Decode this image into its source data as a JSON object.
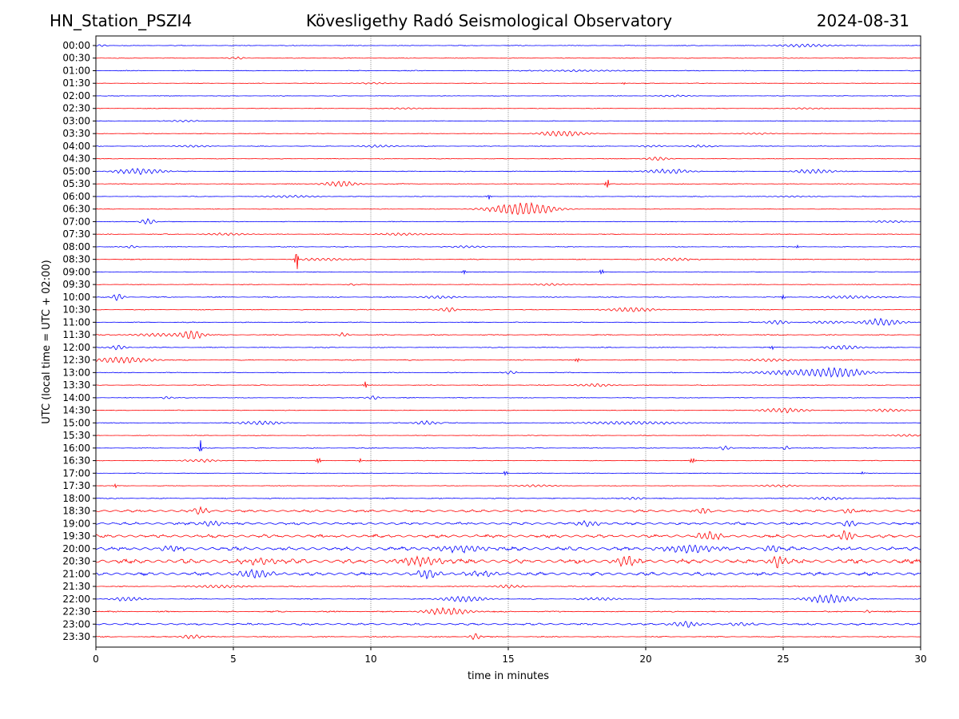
{
  "header": {
    "station": "HN_Station_PSZI4",
    "observatory": "Kövesligethy Radó Seismological Observatory",
    "date": "2024-08-31"
  },
  "chart_data": {
    "type": "line",
    "title": "Kövesligethy Radó Seismological Observatory",
    "xlabel": "time in minutes",
    "ylabel": "UTC (local time = UTC + 02:00)",
    "xlim": [
      0,
      30
    ],
    "x_ticks": [
      "0",
      "5",
      "10",
      "15",
      "20",
      "25",
      "30"
    ],
    "grid": "vertical dotted at each x tick",
    "series_colors": [
      "#0000ff",
      "#ff0000"
    ],
    "rows": [
      {
        "label": "00:00",
        "noise": 0.6,
        "events": [
          [
            0.2,
            1.5,
            0.3
          ],
          [
            25.8,
            2,
            1.5
          ]
        ]
      },
      {
        "label": "00:30",
        "noise": 0.5,
        "events": [
          [
            5.1,
            1.5,
            0.5
          ]
        ]
      },
      {
        "label": "01:00",
        "noise": 0.7,
        "events": [
          [
            17.5,
            1.0,
            3
          ]
        ]
      },
      {
        "label": "01:30",
        "noise": 0.5,
        "events": [
          [
            10,
            1,
            1
          ],
          [
            19.2,
            1.5,
            0.1
          ]
        ]
      },
      {
        "label": "02:00",
        "noise": 0.5,
        "events": [
          [
            21,
            1.2,
            1
          ]
        ]
      },
      {
        "label": "02:30",
        "noise": 0.5,
        "events": [
          [
            11.3,
            1,
            1
          ],
          [
            25.8,
            1,
            1
          ]
        ]
      },
      {
        "label": "03:00",
        "noise": 0.6,
        "events": [
          [
            3.2,
            1.2,
            1
          ]
        ]
      },
      {
        "label": "03:30",
        "noise": 0.5,
        "events": [
          [
            17,
            4,
            1.2
          ],
          [
            24,
            1,
            1
          ]
        ]
      },
      {
        "label": "04:00",
        "noise": 0.6,
        "events": [
          [
            3.5,
            1.5,
            1
          ],
          [
            10.3,
            1.5,
            1
          ],
          [
            20.2,
            1.5,
            0.6
          ],
          [
            22,
            1.5,
            0.8
          ]
        ]
      },
      {
        "label": "04:30",
        "noise": 0.5,
        "events": [
          [
            20.4,
            2.5,
            0.6
          ]
        ]
      },
      {
        "label": "05:00",
        "noise": 0.7,
        "events": [
          [
            1.6,
            4,
            1.3
          ],
          [
            20.8,
            3,
            1.2
          ],
          [
            26.1,
            3,
            1.1
          ]
        ]
      },
      {
        "label": "05:30",
        "noise": 0.6,
        "events": [
          [
            8.9,
            4,
            0.9
          ],
          [
            18.6,
            7,
            0.1
          ]
        ]
      },
      {
        "label": "06:00",
        "noise": 0.6,
        "events": [
          [
            7,
            1.5,
            1.5
          ],
          [
            14.3,
            4,
            0.1
          ],
          [
            25.3,
            1,
            1
          ]
        ]
      },
      {
        "label": "06:30",
        "noise": 0.5,
        "events": [
          [
            15.5,
            9,
            1.6
          ]
        ]
      },
      {
        "label": "07:00",
        "noise": 0.6,
        "events": [
          [
            1.9,
            4,
            0.4
          ],
          [
            28.8,
            1.5,
            1
          ]
        ]
      },
      {
        "label": "07:30",
        "noise": 0.6,
        "events": [
          [
            4.8,
            1.5,
            1.2
          ],
          [
            11.2,
            1.5,
            1.5
          ]
        ]
      },
      {
        "label": "08:00",
        "noise": 0.6,
        "events": [
          [
            1.3,
            2,
            0.3
          ],
          [
            13.5,
            1.5,
            1
          ],
          [
            25.5,
            3,
            0.1
          ]
        ]
      },
      {
        "label": "08:30",
        "noise": 0.8,
        "events": [
          [
            7.3,
            18,
            0.08
          ],
          [
            8.2,
            2,
            1.2
          ],
          [
            21,
            2,
            1
          ]
        ]
      },
      {
        "label": "09:00",
        "noise": 0.6,
        "events": [
          [
            13.4,
            4,
            0.1
          ],
          [
            18.4,
            4,
            0.1
          ]
        ]
      },
      {
        "label": "09:30",
        "noise": 0.6,
        "events": [
          [
            9.3,
            2,
            0.2
          ],
          [
            16.5,
            1.5,
            1
          ]
        ]
      },
      {
        "label": "10:00",
        "noise": 0.7,
        "events": [
          [
            0.8,
            5,
            0.3
          ],
          [
            12.5,
            2,
            1
          ],
          [
            25,
            3,
            0.1
          ],
          [
            27.5,
            2,
            1.5
          ]
        ]
      },
      {
        "label": "10:30",
        "noise": 0.7,
        "events": [
          [
            12.8,
            3,
            0.5
          ],
          [
            19.5,
            3,
            1.2
          ]
        ]
      },
      {
        "label": "11:00",
        "noise": 0.7,
        "events": [
          [
            24.8,
            3,
            0.6
          ],
          [
            26.6,
            2,
            1
          ],
          [
            28.6,
            5,
            1
          ]
        ]
      },
      {
        "label": "11:30",
        "noise": 0.8,
        "events": [
          [
            2.3,
            2,
            1.5
          ],
          [
            3.5,
            6,
            0.6
          ],
          [
            9,
            3,
            0.3
          ]
        ]
      },
      {
        "label": "12:00",
        "noise": 0.7,
        "events": [
          [
            0.8,
            3,
            0.5
          ],
          [
            24.6,
            3,
            0.1
          ],
          [
            27.2,
            3,
            1
          ]
        ]
      },
      {
        "label": "12:30",
        "noise": 0.8,
        "events": [
          [
            1,
            4,
            1.5
          ],
          [
            17.5,
            3,
            0.1
          ],
          [
            24.5,
            2,
            1
          ]
        ]
      },
      {
        "label": "13:00",
        "noise": 0.7,
        "events": [
          [
            15.1,
            2,
            0.4
          ],
          [
            25.3,
            3,
            2
          ],
          [
            27,
            6,
            1.5
          ]
        ]
      },
      {
        "label": "13:30",
        "noise": 0.6,
        "events": [
          [
            9.8,
            5,
            0.1
          ],
          [
            18.1,
            2,
            1
          ]
        ]
      },
      {
        "label": "14:00",
        "noise": 0.6,
        "events": [
          [
            10.1,
            3,
            0.3
          ],
          [
            2.6,
            2,
            0.3
          ]
        ]
      },
      {
        "label": "14:30",
        "noise": 0.6,
        "events": [
          [
            25,
            3,
            1.2
          ],
          [
            28.8,
            2,
            1
          ]
        ]
      },
      {
        "label": "15:00",
        "noise": 0.7,
        "events": [
          [
            6,
            2.5,
            1.2
          ],
          [
            12,
            3,
            0.6
          ],
          [
            19.5,
            2,
            3
          ]
        ]
      },
      {
        "label": "15:30",
        "noise": 0.5,
        "events": [
          [
            29.5,
            1.5,
            1
          ]
        ]
      },
      {
        "label": "16:00",
        "noise": 0.6,
        "events": [
          [
            3.8,
            12,
            0.08
          ],
          [
            22.9,
            3,
            0.3
          ],
          [
            25.1,
            3,
            0.2
          ]
        ]
      },
      {
        "label": "16:30",
        "noise": 0.6,
        "events": [
          [
            3.8,
            2,
            1
          ],
          [
            8.1,
            4,
            0.15
          ],
          [
            9.6,
            4,
            0.08
          ],
          [
            21.7,
            4,
            0.15
          ]
        ]
      },
      {
        "label": "17:00",
        "noise": 0.5,
        "events": [
          [
            14.9,
            4,
            0.1
          ],
          [
            27.9,
            2,
            0.1
          ]
        ]
      },
      {
        "label": "17:30",
        "noise": 0.5,
        "events": [
          [
            0.7,
            3,
            0.1
          ],
          [
            16,
            1.5,
            1
          ],
          [
            24.8,
            1.5,
            1
          ]
        ]
      },
      {
        "label": "18:00",
        "noise": 0.8,
        "events": [
          [
            19.6,
            2,
            0.5
          ],
          [
            26.6,
            2,
            1
          ]
        ]
      },
      {
        "label": "18:30",
        "noise": 1.3,
        "events": [
          [
            3.8,
            5,
            0.4
          ],
          [
            22.1,
            5,
            0.3
          ],
          [
            27.4,
            4,
            0.3
          ]
        ]
      },
      {
        "label": "19:00",
        "noise": 1.4,
        "events": [
          [
            4.2,
            4,
            0.6
          ],
          [
            17.9,
            4,
            0.6
          ],
          [
            27.4,
            5,
            0.3
          ]
        ]
      },
      {
        "label": "19:30",
        "noise": 1.7,
        "events": [
          [
            22.3,
            6,
            0.6
          ],
          [
            27.3,
            7,
            0.4
          ]
        ]
      },
      {
        "label": "20:00",
        "noise": 2.0,
        "events": [
          [
            2.8,
            4,
            0.6
          ],
          [
            13.3,
            4,
            1.5
          ],
          [
            21.6,
            5,
            1.5
          ],
          [
            24.6,
            5,
            0.4
          ]
        ]
      },
      {
        "label": "20:30",
        "noise": 2.3,
        "events": [
          [
            6,
            4,
            1
          ],
          [
            11.8,
            6,
            1.2
          ],
          [
            19.3,
            7,
            0.6
          ],
          [
            24.8,
            8,
            0.4
          ]
        ]
      },
      {
        "label": "21:00",
        "noise": 1.8,
        "events": [
          [
            5.8,
            5,
            1
          ],
          [
            12.1,
            6,
            0.6
          ],
          [
            14,
            3,
            1
          ]
        ]
      },
      {
        "label": "21:30",
        "noise": 0.8,
        "events": [
          [
            4.5,
            2,
            1.5
          ],
          [
            15,
            2,
            0.8
          ]
        ]
      },
      {
        "label": "22:00",
        "noise": 0.8,
        "events": [
          [
            1.1,
            3,
            0.8
          ],
          [
            13.4,
            4,
            1.2
          ],
          [
            18.4,
            2,
            1
          ],
          [
            26.7,
            6,
            1.2
          ]
        ]
      },
      {
        "label": "22:30",
        "noise": 1.0,
        "events": [
          [
            12.8,
            5,
            1.2
          ],
          [
            28.1,
            2,
            0.2
          ]
        ]
      },
      {
        "label": "23:00",
        "noise": 1.1,
        "events": [
          [
            21.5,
            4,
            0.8
          ],
          [
            23.4,
            2,
            0.6
          ]
        ]
      },
      {
        "label": "23:30",
        "noise": 0.8,
        "events": [
          [
            3.5,
            3,
            0.6
          ],
          [
            13.8,
            4,
            0.3
          ]
        ]
      }
    ]
  }
}
